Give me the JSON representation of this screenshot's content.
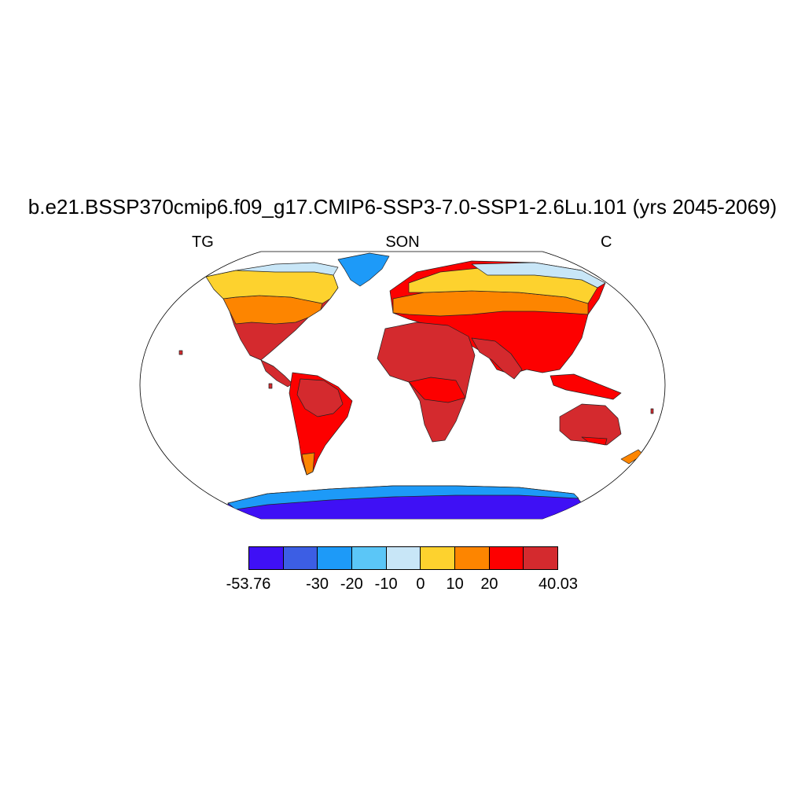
{
  "title": "b.e21.BSSP370cmip6.f09_g17.CMIP6-SSP3-7.0-SSP1-2.6Lu.101 (yrs 2045-2069)",
  "subtitle_left": "TG",
  "subtitle_center": "SON",
  "subtitle_right": "C",
  "colorbar": {
    "colors": [
      "#3f10f5",
      "#3c5ee4",
      "#1d9af8",
      "#5bc6f7",
      "#c8e6f7",
      "#fdd22e",
      "#fd8500",
      "#fd0000",
      "#d42a2e"
    ],
    "labels": [
      {
        "text": "-53.76",
        "boundary": 0
      },
      {
        "text": "-30",
        "boundary": 2
      },
      {
        "text": "-20",
        "boundary": 3
      },
      {
        "text": "-10",
        "boundary": 4
      },
      {
        "text": "0",
        "boundary": 5
      },
      {
        "text": "10",
        "boundary": 6
      },
      {
        "text": "20",
        "boundary": 7
      },
      {
        "text": "40.03",
        "boundary": 9
      }
    ]
  },
  "chart_data": {
    "type": "heatmap",
    "projection": "robinson",
    "variable": "TG",
    "season": "SON",
    "units": "C",
    "range": [
      -53.76,
      40.03
    ],
    "levels": [
      -30,
      -20,
      -10,
      0,
      10,
      20
    ]
  }
}
